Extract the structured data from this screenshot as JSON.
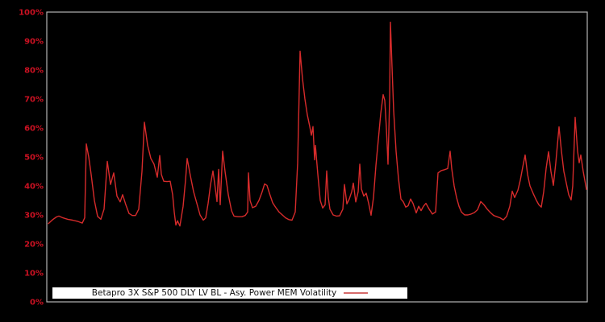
{
  "window": {
    "background": "#000000"
  },
  "legend": {
    "label": "Betapro 3X S&P 500 DLY LV BL - Asy. Power MEM Volatility"
  },
  "chart_data": {
    "type": "line",
    "title": "",
    "background": "#000000",
    "plot_border_color": "#b3b3b3",
    "grid": false,
    "legend_position": "inside-bottom-center",
    "y_axis": {
      "ticks": [
        "0%",
        "10%",
        "20%",
        "30%",
        "40%",
        "50%",
        "60%",
        "70%",
        "80%",
        "90%",
        "100%"
      ],
      "range": [
        0,
        100
      ],
      "label_color": "#cc1122"
    },
    "x_axis": {
      "ticks": []
    },
    "series": [
      {
        "name": "Betapro 3X S&P 500 DLY LV BL - Asy. Power MEM Volatility",
        "color": "#d62b2b",
        "unit": "percent",
        "points": [
          [
            60,
            27
          ],
          [
            65,
            28.3
          ],
          [
            70,
            29.3
          ],
          [
            73,
            29.6
          ],
          [
            78,
            29
          ],
          [
            84,
            28.5
          ],
          [
            90,
            28.2
          ],
          [
            96,
            27.8
          ],
          [
            102,
            27.2
          ],
          [
            105,
            29
          ],
          [
            107,
            54.5
          ],
          [
            110,
            50
          ],
          [
            113,
            44
          ],
          [
            117,
            35
          ],
          [
            121,
            29.5
          ],
          [
            125,
            28.5
          ],
          [
            129,
            32
          ],
          [
            133,
            48.5
          ],
          [
            137,
            40.5
          ],
          [
            141,
            44.5
          ],
          [
            145,
            36.5
          ],
          [
            149,
            34.5
          ],
          [
            152,
            37
          ],
          [
            156,
            33.5
          ],
          [
            160,
            30.5
          ],
          [
            164,
            29.8
          ],
          [
            168,
            29.8
          ],
          [
            172,
            32
          ],
          [
            176,
            45
          ],
          [
            179,
            62
          ],
          [
            183,
            54
          ],
          [
            187,
            49.5
          ],
          [
            191,
            47.5
          ],
          [
            195,
            43
          ],
          [
            198,
            50.5
          ],
          [
            200,
            44
          ],
          [
            203,
            41.6
          ],
          [
            207,
            41.5
          ],
          [
            211,
            41.6
          ],
          [
            214,
            37
          ],
          [
            216,
            31
          ],
          [
            218,
            26.5
          ],
          [
            220,
            28
          ],
          [
            223,
            26.2
          ],
          [
            227,
            33
          ],
          [
            230,
            42
          ],
          [
            232,
            49.5
          ],
          [
            236,
            43.5
          ],
          [
            240,
            38
          ],
          [
            244,
            34
          ],
          [
            248,
            30
          ],
          [
            252,
            28.2
          ],
          [
            255,
            29
          ],
          [
            258,
            34
          ],
          [
            261,
            40.5
          ],
          [
            264,
            45.2
          ],
          [
            267,
            39
          ],
          [
            269,
            34.6
          ],
          [
            271,
            45.7
          ],
          [
            273,
            33.5
          ],
          [
            276,
            52
          ],
          [
            279,
            45
          ],
          [
            283,
            37
          ],
          [
            287,
            31.5
          ],
          [
            290,
            29.6
          ],
          [
            295,
            29.4
          ],
          [
            300,
            29.4
          ],
          [
            304,
            29.8
          ],
          [
            307,
            31
          ],
          [
            308,
            44.5
          ],
          [
            310,
            35
          ],
          [
            313,
            32.5
          ],
          [
            317,
            33
          ],
          [
            321,
            35
          ],
          [
            325,
            38
          ],
          [
            328,
            40.7
          ],
          [
            331,
            40.2
          ],
          [
            334,
            37.5
          ],
          [
            338,
            34.2
          ],
          [
            342,
            32.5
          ],
          [
            346,
            31
          ],
          [
            350,
            30
          ],
          [
            354,
            29
          ],
          [
            358,
            28.4
          ],
          [
            362,
            28.2
          ],
          [
            366,
            31
          ],
          [
            369,
            48
          ],
          [
            372,
            86.5
          ],
          [
            375,
            77
          ],
          [
            378,
            70
          ],
          [
            381,
            64.5
          ],
          [
            384,
            60.5
          ],
          [
            386,
            57.5
          ],
          [
            388,
            60.5
          ],
          [
            390,
            49
          ],
          [
            391,
            54
          ],
          [
            394,
            44
          ],
          [
            397,
            35
          ],
          [
            400,
            32.4
          ],
          [
            403,
            33.5
          ],
          [
            405,
            45.2
          ],
          [
            407,
            36
          ],
          [
            409,
            32
          ],
          [
            413,
            30
          ],
          [
            417,
            29.6
          ],
          [
            421,
            29.7
          ],
          [
            425,
            32
          ],
          [
            427,
            40.5
          ],
          [
            430,
            33.8
          ],
          [
            433,
            35.5
          ],
          [
            436,
            38
          ],
          [
            438,
            41
          ],
          [
            441,
            34.5
          ],
          [
            444,
            38
          ],
          [
            446,
            47.5
          ],
          [
            448,
            39
          ],
          [
            451,
            36.5
          ],
          [
            454,
            37.5
          ],
          [
            457,
            34
          ],
          [
            460,
            29.9
          ],
          [
            463,
            36
          ],
          [
            466,
            47
          ],
          [
            469,
            56
          ],
          [
            472,
            65
          ],
          [
            475,
            71.5
          ],
          [
            477,
            69.5
          ],
          [
            479,
            60
          ],
          [
            481,
            47.5
          ],
          [
            483,
            70
          ],
          [
            484,
            96.5
          ],
          [
            486,
            81
          ],
          [
            488,
            66
          ],
          [
            491,
            52
          ],
          [
            494,
            42.5
          ],
          [
            497,
            35.5
          ],
          [
            500,
            34.5
          ],
          [
            503,
            32.7
          ],
          [
            506,
            33.2
          ],
          [
            509,
            35.5
          ],
          [
            512,
            34
          ],
          [
            516,
            30.7
          ],
          [
            519,
            33
          ],
          [
            522,
            31.5
          ],
          [
            525,
            33
          ],
          [
            528,
            34
          ],
          [
            532,
            32
          ],
          [
            536,
            30.3
          ],
          [
            540,
            31
          ],
          [
            543,
            44.5
          ],
          [
            547,
            45.3
          ],
          [
            551,
            45.6
          ],
          [
            555,
            46
          ],
          [
            558,
            52
          ],
          [
            560,
            46
          ],
          [
            563,
            40
          ],
          [
            566,
            36
          ],
          [
            569,
            33
          ],
          [
            572,
            31
          ],
          [
            576,
            30
          ],
          [
            580,
            30
          ],
          [
            584,
            30.3
          ],
          [
            588,
            30.8
          ],
          [
            592,
            31.8
          ],
          [
            596,
            34.6
          ],
          [
            600,
            33.5
          ],
          [
            604,
            32
          ],
          [
            608,
            30.8
          ],
          [
            612,
            29.8
          ],
          [
            616,
            29.4
          ],
          [
            620,
            29
          ],
          [
            624,
            28.3
          ],
          [
            628,
            29.5
          ],
          [
            632,
            33
          ],
          [
            635,
            38.2
          ],
          [
            638,
            36
          ],
          [
            642,
            38.5
          ],
          [
            645,
            42
          ],
          [
            648,
            46.5
          ],
          [
            651,
            50.7
          ],
          [
            654,
            44
          ],
          [
            657,
            40
          ],
          [
            661,
            37.4
          ],
          [
            665,
            35
          ],
          [
            668,
            33.5
          ],
          [
            671,
            32.7
          ],
          [
            674,
            38
          ],
          [
            677,
            46
          ],
          [
            680,
            51.8
          ],
          [
            683,
            45
          ],
          [
            686,
            40.2
          ],
          [
            689,
            48
          ],
          [
            693,
            60.4
          ],
          [
            696,
            52
          ],
          [
            699,
            45
          ],
          [
            702,
            41
          ],
          [
            705,
            37
          ],
          [
            708,
            35.2
          ],
          [
            710,
            40
          ],
          [
            713,
            63.7
          ],
          [
            716,
            52
          ],
          [
            718,
            48
          ],
          [
            720,
            50.7
          ],
          [
            723,
            45
          ],
          [
            727,
            38.8
          ]
        ]
      }
    ]
  }
}
